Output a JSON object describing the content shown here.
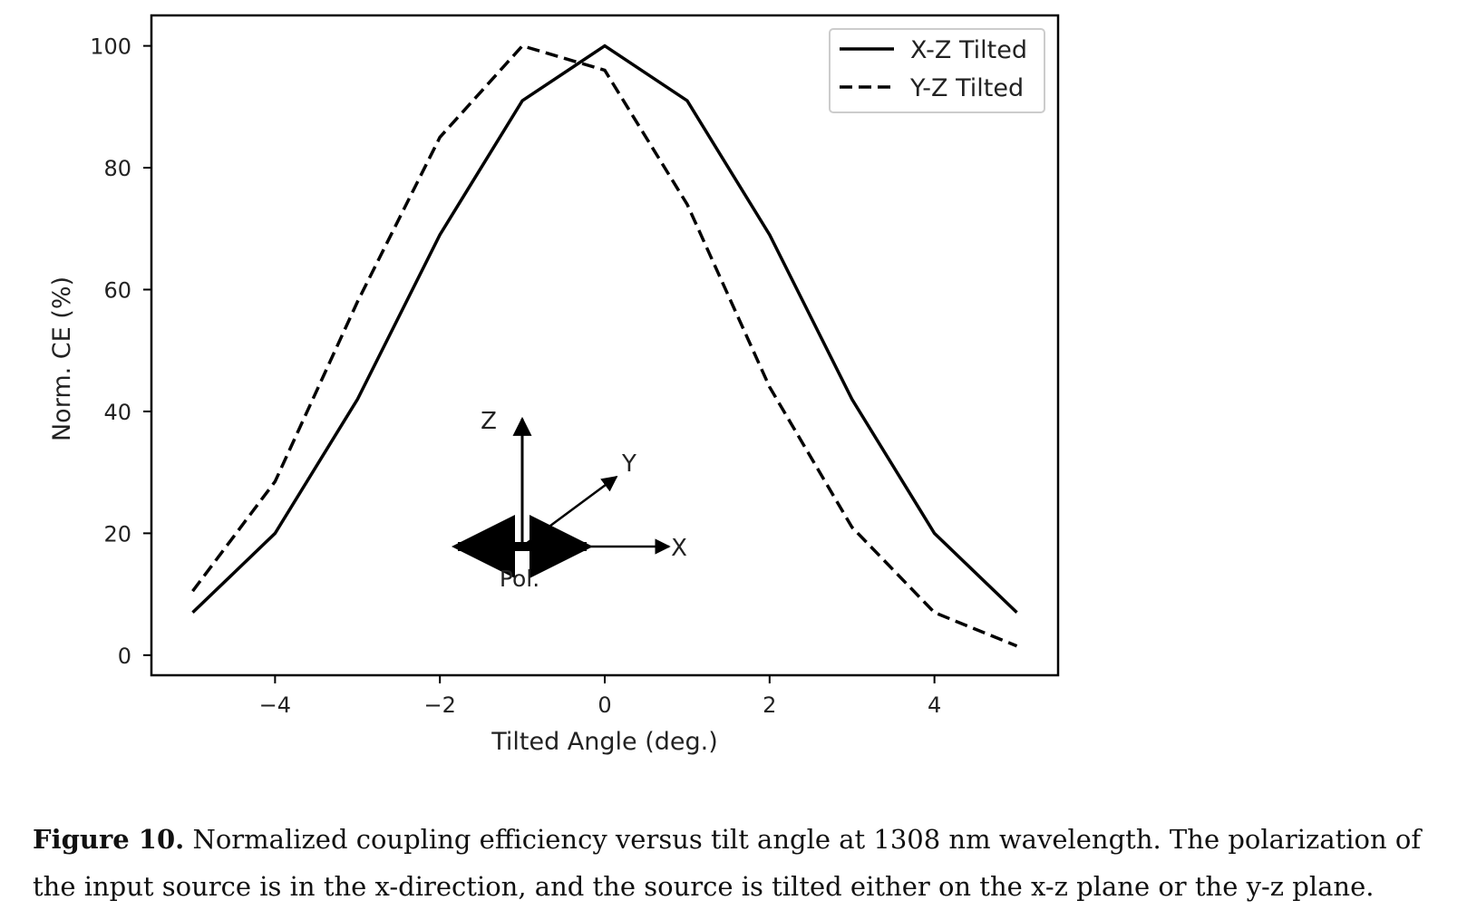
{
  "chart_data": {
    "type": "line",
    "xlabel": "Tilted Angle (deg.)",
    "ylabel": "Norm. CE (%)",
    "xlim": [
      -5.5,
      5.5
    ],
    "ylim": [
      -3.3,
      105
    ],
    "xticks": [
      -4,
      -2,
      0,
      2,
      4
    ],
    "xtick_labels": [
      "−4",
      "−2",
      "0",
      "2",
      "4"
    ],
    "yticks": [
      0,
      20,
      40,
      60,
      80,
      100
    ],
    "ytick_labels": [
      "0",
      "20",
      "40",
      "60",
      "80",
      "100"
    ],
    "legend_position": "top-right",
    "grid": false,
    "series": [
      {
        "name": "X-Z Tilted",
        "style": "solid",
        "color": "#000000",
        "x": [
          -5,
          -4,
          -3,
          -2,
          -1,
          0,
          1,
          2,
          3,
          4,
          5
        ],
        "y": [
          7,
          20,
          42,
          69,
          91,
          100,
          91,
          69,
          42,
          20,
          7
        ]
      },
      {
        "name": "Y-Z Tilted",
        "style": "dashed",
        "color": "#000000",
        "x": [
          -5,
          -4,
          -3,
          -2,
          -1,
          0,
          1,
          2,
          3,
          4,
          5
        ],
        "y": [
          10.5,
          28.5,
          58,
          85,
          100,
          96,
          74,
          44,
          21,
          7,
          1.5
        ]
      }
    ],
    "inset": {
      "axis_labels": {
        "z": "Z",
        "y": "Y",
        "x": "X"
      },
      "pol_label": "Pol."
    }
  },
  "caption": {
    "label": "Figure 10.",
    "text": " Normalized coupling efficiency versus tilt angle at 1308 nm wavelength. The polarization of the input source is in the x-direction, and the source is tilted either on the x-z plane or the y-z plane."
  }
}
